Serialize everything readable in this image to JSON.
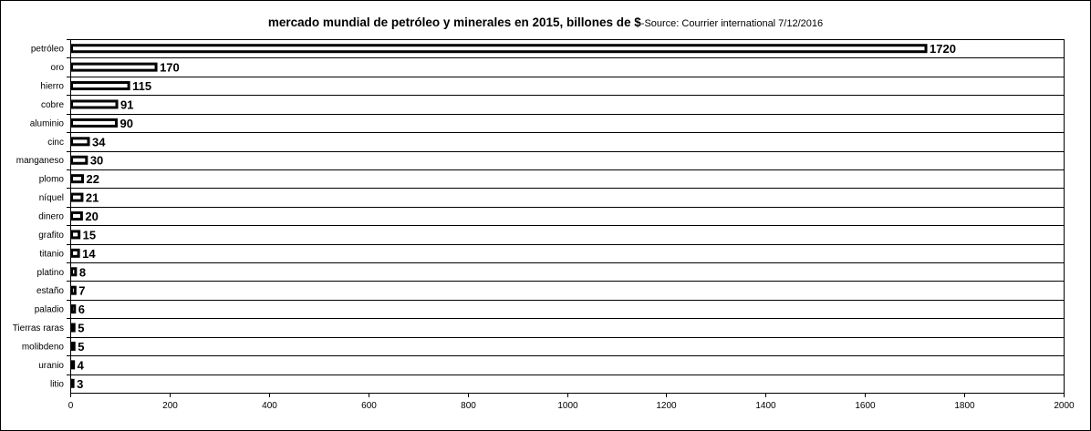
{
  "chart_data": {
    "type": "bar",
    "orientation": "horizontal",
    "title": "mercado mundial de petróleo y minerales en 2015, billones de $",
    "subtitle": "-Source: Courrier international 7/12/2016",
    "xlim": [
      0,
      2000
    ],
    "xticks": [
      0,
      200,
      400,
      600,
      800,
      1000,
      1200,
      1400,
      1600,
      1800,
      2000
    ],
    "grid": "horizontal",
    "legend": "none",
    "bar_fill": "#ffffff",
    "bar_stroke": "#000000",
    "categories": [
      "petróleo",
      "oro",
      "hierro",
      "cobre",
      "aluminio",
      "cinc",
      "manganeso",
      "plomo",
      "níquel",
      "dinero",
      "grafito",
      "titanio",
      "platino",
      "estaño",
      "paladio",
      "Tierras raras",
      "molibdeno",
      "uranio",
      "litio"
    ],
    "values": [
      1720,
      170,
      115,
      91,
      90,
      34,
      30,
      22,
      21,
      20,
      15,
      14,
      8,
      7,
      6,
      5,
      5,
      4,
      3
    ]
  }
}
